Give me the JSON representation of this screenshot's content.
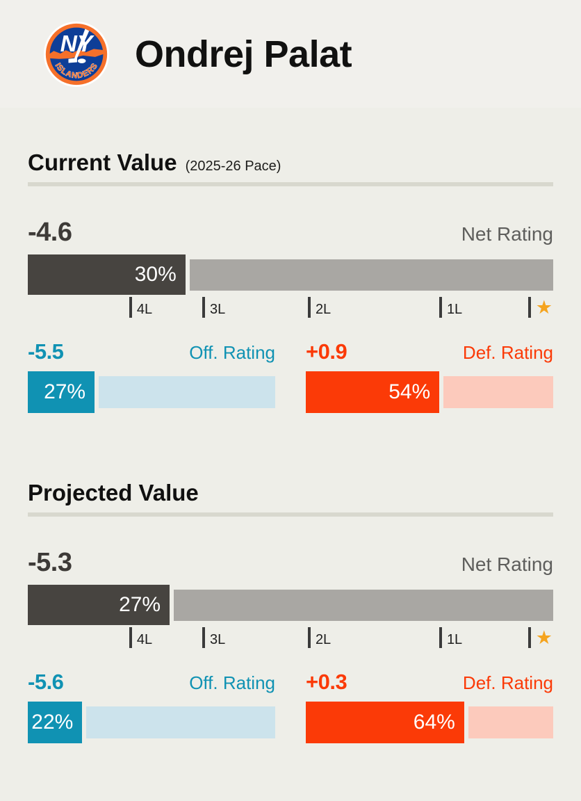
{
  "header": {
    "title": "Ondrej Palat",
    "logo": {
      "name": "ny-islanders-logo",
      "monogram": "NY",
      "wordmark": "ISLANDERS"
    }
  },
  "scale": {
    "ticks": [
      {
        "label": "4L",
        "pos": 19.3
      },
      {
        "label": "3L",
        "pos": 33.2
      },
      {
        "label": "2L",
        "pos": 53.3
      },
      {
        "label": "1L",
        "pos": 78.3
      }
    ],
    "star_tick_pos": 95.2,
    "star_icon": "★"
  },
  "sections": [
    {
      "heading": "Current Value",
      "subtitle": "(2025-26 Pace)",
      "net": {
        "value": "-4.6",
        "label": "Net Rating",
        "percent": 30,
        "percent_label": "30%"
      },
      "off": {
        "value": "-5.5",
        "label": "Off. Rating",
        "percent": 27,
        "percent_label": "27%"
      },
      "def": {
        "value": "+0.9",
        "label": "Def. Rating",
        "percent": 54,
        "percent_label": "54%"
      }
    },
    {
      "heading": "Projected Value",
      "subtitle": "",
      "net": {
        "value": "-5.3",
        "label": "Net Rating",
        "percent": 27,
        "percent_label": "27%"
      },
      "off": {
        "value": "-5.6",
        "label": "Off. Rating",
        "percent": 22,
        "percent_label": "22%"
      },
      "def": {
        "value": "+0.3",
        "label": "Def. Rating",
        "percent": 64,
        "percent_label": "64%"
      }
    }
  ],
  "chart_data": [
    {
      "type": "bar",
      "title": "Current Value (2025-26 Pace)",
      "categories": [
        "Net Rating",
        "Off. Rating",
        "Def. Rating"
      ],
      "series": [
        {
          "name": "Net Rating",
          "rating": -4.6,
          "percentile": 30
        },
        {
          "name": "Off. Rating",
          "rating": -5.5,
          "percentile": 27
        },
        {
          "name": "Def. Rating",
          "rating": 0.9,
          "percentile": 54
        }
      ],
      "x_axis_ticks": [
        "4L",
        "3L",
        "2L",
        "1L",
        "★"
      ],
      "x_axis_tick_positions_pct": [
        19.3,
        33.2,
        53.3,
        78.3,
        95.2
      ],
      "xlim": [
        0,
        100
      ],
      "legend": "off",
      "grid": "off"
    },
    {
      "type": "bar",
      "title": "Projected Value",
      "categories": [
        "Net Rating",
        "Off. Rating",
        "Def. Rating"
      ],
      "series": [
        {
          "name": "Net Rating",
          "rating": -5.3,
          "percentile": 27
        },
        {
          "name": "Off. Rating",
          "rating": -5.6,
          "percentile": 22
        },
        {
          "name": "Def. Rating",
          "rating": 0.3,
          "percentile": 64
        }
      ],
      "x_axis_ticks": [
        "4L",
        "3L",
        "2L",
        "1L",
        "★"
      ],
      "x_axis_tick_positions_pct": [
        19.3,
        33.2,
        53.3,
        78.3,
        95.2
      ],
      "xlim": [
        0,
        100
      ],
      "legend": "off",
      "grid": "off"
    }
  ],
  "colors": {
    "body_bg": "#eeeee8",
    "header_bg": "#f1f0ec",
    "rule": "#d8d8ce",
    "net_fill": "#474440",
    "net_rest": "#a9a7a3",
    "off_accent": "#1092b3",
    "off_rest": "#cce3ec",
    "def_accent": "#fb3a07",
    "def_rest": "#fccabc",
    "star": "#f5a41f",
    "logo_blue": "#0e3e97",
    "logo_orange": "#f5702a"
  }
}
